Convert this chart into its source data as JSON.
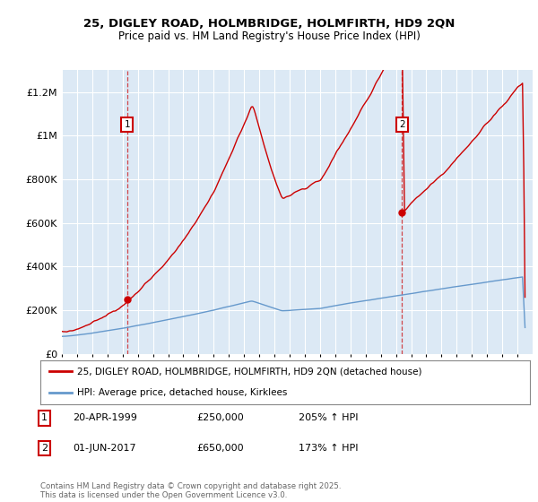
{
  "title1": "25, DIGLEY ROAD, HOLMBRIDGE, HOLMFIRTH, HD9 2QN",
  "title2": "Price paid vs. HM Land Registry's House Price Index (HPI)",
  "legend_property": "25, DIGLEY ROAD, HOLMBRIDGE, HOLMFIRTH, HD9 2QN (detached house)",
  "legend_hpi": "HPI: Average price, detached house, Kirklees",
  "annotation1_date": "20-APR-1999",
  "annotation1_price": "£250,000",
  "annotation1_hpi": "205% ↑ HPI",
  "annotation2_date": "01-JUN-2017",
  "annotation2_price": "£650,000",
  "annotation2_hpi": "173% ↑ HPI",
  "copyright": "Contains HM Land Registry data © Crown copyright and database right 2025.\nThis data is licensed under the Open Government Licence v3.0.",
  "property_color": "#cc0000",
  "hpi_color": "#6699cc",
  "plot_bg_color": "#dce9f5",
  "purchase1_year": 1999.3,
  "purchase1_price": 250000,
  "purchase2_year": 2017.4,
  "purchase2_price": 650000,
  "ylim_max": 1300000,
  "xlim_min": 1995,
  "xlim_max": 2026
}
